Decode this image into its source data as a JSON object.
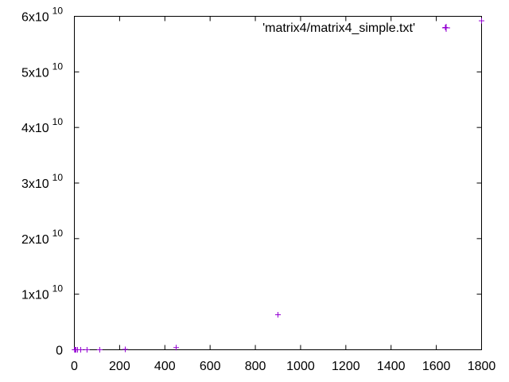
{
  "chart_data": {
    "type": "scatter",
    "title": "",
    "xlabel": "",
    "ylabel": "",
    "xlim": [
      0,
      1800
    ],
    "ylim": [
      0,
      60000000000
    ],
    "grid": false,
    "legend_position": "top-right",
    "x_ticks": [
      0,
      200,
      400,
      600,
      800,
      1000,
      1200,
      1400,
      1600,
      1800
    ],
    "x_tick_labels": [
      "0",
      "200",
      "400",
      "600",
      "800",
      "1000",
      "1200",
      "1400",
      "1600",
      "1800"
    ],
    "y_ticks": [
      0,
      10000000000,
      20000000000,
      30000000000,
      40000000000,
      50000000000,
      60000000000
    ],
    "y_tick_labels": [
      {
        "mantissa": "0",
        "exponent": ""
      },
      {
        "mantissa": "1x10",
        "exponent": "10"
      },
      {
        "mantissa": "2x10",
        "exponent": "10"
      },
      {
        "mantissa": "3x10",
        "exponent": "10"
      },
      {
        "mantissa": "4x10",
        "exponent": "10"
      },
      {
        "mantissa": "5x10",
        "exponent": "10"
      },
      {
        "mantissa": "6x10",
        "exponent": "10"
      }
    ],
    "series": [
      {
        "name": "'matrix4/matrix4_simple.txt'",
        "color": "#9400d3",
        "marker": "plus",
        "points": [
          {
            "x": 1,
            "y": 0
          },
          {
            "x": 3,
            "y": 0
          },
          {
            "x": 7,
            "y": 0
          },
          {
            "x": 14,
            "y": 0
          },
          {
            "x": 28,
            "y": 0
          },
          {
            "x": 56,
            "y": 0
          },
          {
            "x": 112,
            "y": 0
          },
          {
            "x": 225,
            "y": 80000000
          },
          {
            "x": 450,
            "y": 400000000
          },
          {
            "x": 900,
            "y": 6300000000
          },
          {
            "x": 1640,
            "y": 58000000000
          },
          {
            "x": 1800,
            "y": 59200000000
          }
        ]
      }
    ]
  }
}
